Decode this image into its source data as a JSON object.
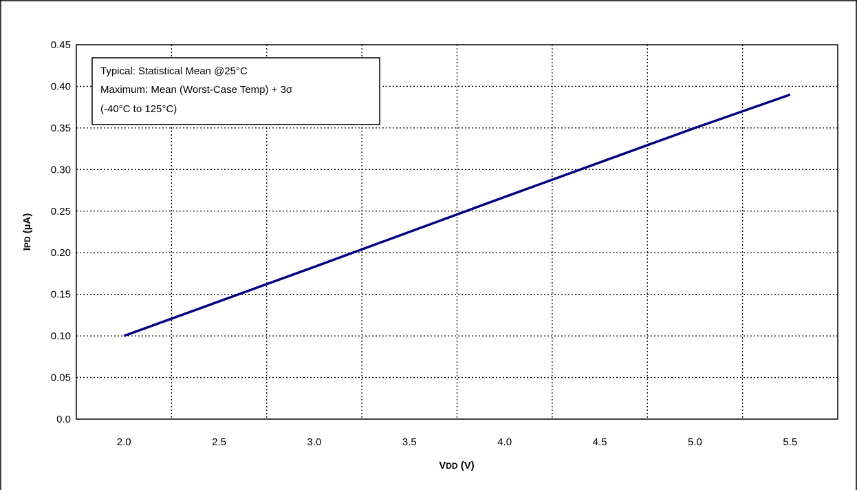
{
  "chart_data": {
    "type": "line",
    "xlabel_main": "V",
    "xlabel_sub": "DD",
    "xlabel_unit": " (V)",
    "ylabel_main": "I",
    "ylabel_sub": "PD",
    "ylabel_unit": " (µA)",
    "xlim": [
      1.75,
      5.75
    ],
    "ylim": [
      0,
      0.45
    ],
    "x_ticks": [
      {
        "value": 2.0,
        "label": "2.0"
      },
      {
        "value": 2.5,
        "label": "2.5"
      },
      {
        "value": 3.0,
        "label": "3.0"
      },
      {
        "value": 3.5,
        "label": "3.5"
      },
      {
        "value": 4.0,
        "label": "4.0"
      },
      {
        "value": 4.5,
        "label": "4.5"
      },
      {
        "value": 5.0,
        "label": "5.0"
      },
      {
        "value": 5.5,
        "label": "5.5"
      }
    ],
    "x_gridlines": [
      2.25,
      2.75,
      3.25,
      3.75,
      4.25,
      4.75,
      5.25
    ],
    "y_ticks": [
      {
        "value": 0.0,
        "label": "0.0"
      },
      {
        "value": 0.05,
        "label": "0.05"
      },
      {
        "value": 0.1,
        "label": "0.10"
      },
      {
        "value": 0.15,
        "label": "0.15"
      },
      {
        "value": 0.2,
        "label": "0.20"
      },
      {
        "value": 0.25,
        "label": "0.25"
      },
      {
        "value": 0.3,
        "label": "0.30"
      },
      {
        "value": 0.35,
        "label": "0.35"
      },
      {
        "value": 0.4,
        "label": "0.40"
      },
      {
        "value": 0.45,
        "label": "0.45"
      }
    ],
    "grid": true,
    "grid_style": "dotted",
    "legend_placement": "top-left",
    "series": [
      {
        "color": "#000080",
        "x": [
          2.0,
          3.0,
          4.0,
          5.0,
          5.5
        ],
        "y": [
          0.1,
          0.183,
          0.267,
          0.35,
          0.39
        ]
      }
    ],
    "annotation_lines": [
      "Typical: Statistical Mean @25°C",
      "Maximum: Mean (Worst-Case Temp) + 3σ",
      "(-40°C to 125°C)"
    ]
  }
}
